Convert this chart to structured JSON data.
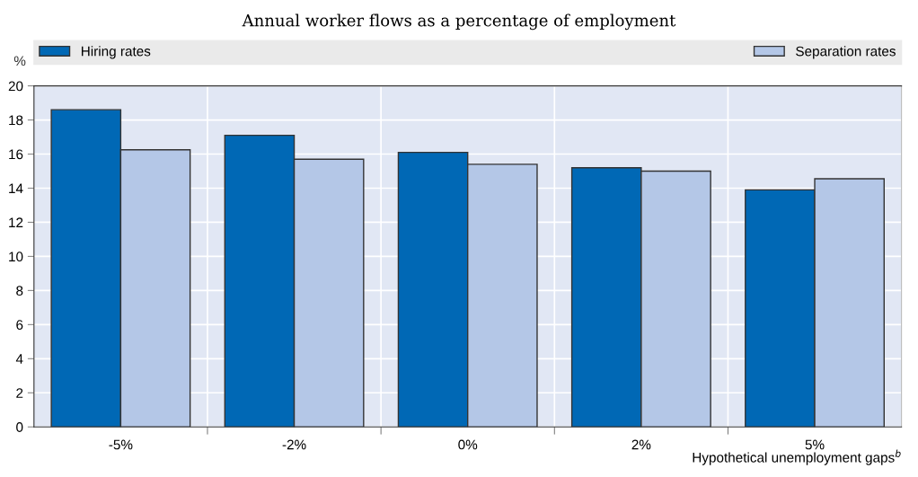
{
  "chart_data": {
    "type": "bar",
    "title": "Annual worker flows as a percentage of employment",
    "ylabel": "%",
    "xlabel": "Hypothetical unemployment gaps$^{b}$",
    "categories": [
      "-5%",
      "-2%",
      "0%",
      "2%",
      "5%"
    ],
    "series": [
      {
        "name": "Hiring rates",
        "color": "#0068b5",
        "values": [
          18.6,
          17.1,
          16.1,
          15.2,
          13.9
        ]
      },
      {
        "name": "Separation rates",
        "color": "#b4c7e7",
        "values": [
          16.25,
          15.7,
          15.4,
          15.0,
          14.55
        ]
      }
    ],
    "ylim": [
      0,
      20
    ],
    "yticks": [
      0,
      2,
      4,
      6,
      8,
      10,
      12,
      14,
      16,
      18,
      20
    ],
    "grid": true,
    "legend": "top"
  }
}
